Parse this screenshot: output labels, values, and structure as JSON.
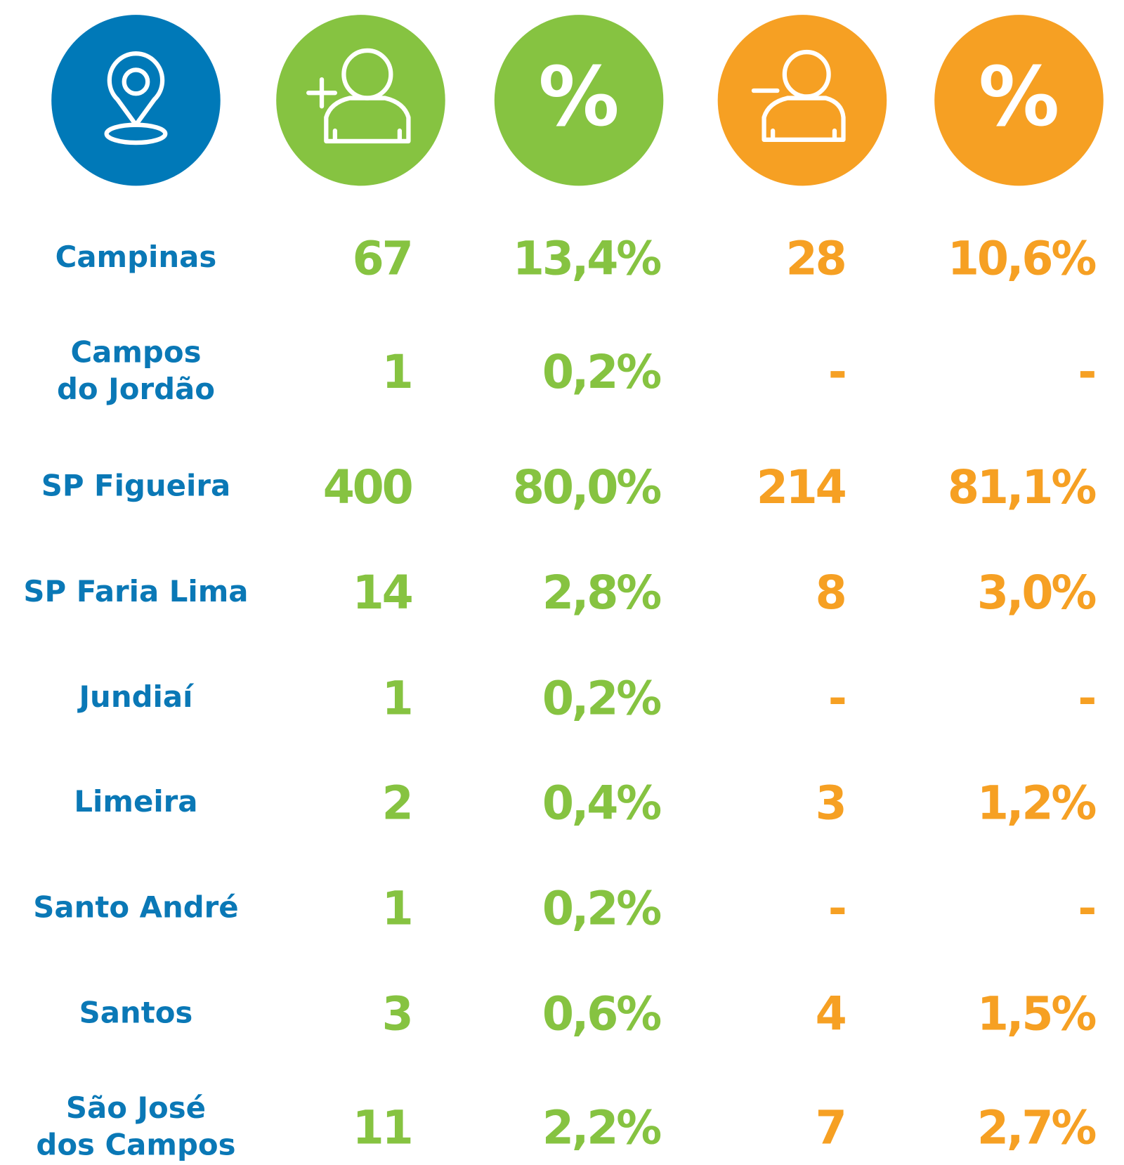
{
  "header": {
    "symbols": [
      "%",
      "%"
    ]
  },
  "table": {
    "rows": [
      {
        "name": [
          "Campinas"
        ],
        "hires": "67",
        "hires_pct": "13,4%",
        "exits": "28",
        "exits_pct": "10,6%"
      },
      {
        "name": [
          "Campos",
          "do Jordão"
        ],
        "hires": "1",
        "hires_pct": "0,2%",
        "exits": "-",
        "exits_pct": "-"
      },
      {
        "name": [
          "SP Figueira"
        ],
        "hires": "400",
        "hires_pct": "80,0%",
        "exits": "214",
        "exits_pct": "81,1%"
      },
      {
        "name": [
          "SP Faria Lima"
        ],
        "hires": "14",
        "hires_pct": "2,8%",
        "exits": "8",
        "exits_pct": "3,0%"
      },
      {
        "name": [
          "Jundiaí"
        ],
        "hires": "1",
        "hires_pct": "0,2%",
        "exits": "-",
        "exits_pct": "-"
      },
      {
        "name": [
          "Limeira"
        ],
        "hires": "2",
        "hires_pct": "0,4%",
        "exits": "3",
        "exits_pct": "1,2%"
      },
      {
        "name": [
          "Santo André"
        ],
        "hires": "1",
        "hires_pct": "0,2%",
        "exits": "-",
        "exits_pct": "-"
      },
      {
        "name": [
          "Santos"
        ],
        "hires": "3",
        "hires_pct": "0,6%",
        "exits": "4",
        "exits_pct": "1,5%"
      },
      {
        "name": [
          "São José",
          "dos Campos"
        ],
        "hires": "11",
        "hires_pct": "2,2%",
        "exits": "7",
        "exits_pct": "2,7%"
      }
    ]
  }
}
